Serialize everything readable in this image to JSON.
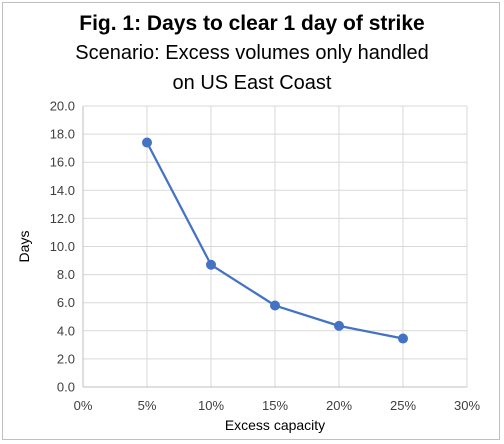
{
  "chart_data": {
    "type": "line",
    "title": "Fig. 1: Days to clear 1 day of strike",
    "subtitle_lines": [
      "Scenario: Excess volumes only handled",
      "on US East Coast"
    ],
    "xlabel": "Excess capacity",
    "ylabel": "Days",
    "x_tick_labels": [
      "0%",
      "5%",
      "10%",
      "15%",
      "20%",
      "25%",
      "30%"
    ],
    "y_tick_labels": [
      "0.0",
      "2.0",
      "4.0",
      "6.0",
      "8.0",
      "10.0",
      "12.0",
      "14.0",
      "16.0",
      "18.0",
      "20.0"
    ],
    "xlim": [
      0,
      30
    ],
    "ylim": [
      0,
      20
    ],
    "grid": true,
    "legend": "none",
    "x": [
      5,
      10,
      15,
      20,
      25
    ],
    "series": [
      {
        "values": [
          17.4,
          8.7,
          5.8,
          4.35,
          3.45
        ],
        "color": "#4472c4"
      }
    ]
  }
}
